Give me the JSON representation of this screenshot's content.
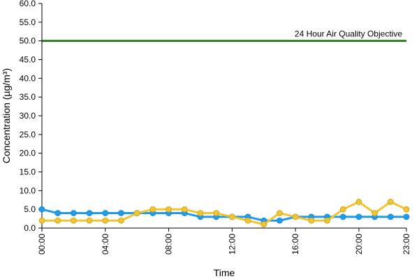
{
  "chart_data": {
    "type": "line",
    "title": "",
    "xlabel": "Time",
    "ylabel": "Concentration (µg/m³)",
    "ylim": [
      0,
      60
    ],
    "yticks": [
      "0.0",
      "5.0",
      "10.0",
      "15.0",
      "20.0",
      "25.0",
      "30.0",
      "35.0",
      "40.0",
      "45.0",
      "50.0",
      "55.0",
      "60.0"
    ],
    "x": [
      "00:00",
      "01:00",
      "02:00",
      "03:00",
      "04:00",
      "05:00",
      "06:00",
      "07:00",
      "08:00",
      "09:00",
      "10:00",
      "11:00",
      "12:00",
      "13:00",
      "14:00",
      "15:00",
      "16:00",
      "17:00",
      "18:00",
      "19:00",
      "20:00",
      "21:00",
      "22:00",
      "23:00"
    ],
    "xtick_labels": [
      "00:00",
      "04:00",
      "08:00",
      "12:00",
      "16:00",
      "20:00",
      "23:00"
    ],
    "grid": false,
    "legend": "none",
    "series": [
      {
        "color": "#1E9BE9",
        "values": [
          5,
          4,
          4,
          4,
          4,
          4,
          4,
          4,
          4,
          4,
          3,
          3,
          3,
          3,
          2,
          2,
          3,
          3,
          3,
          3,
          3,
          3,
          3,
          3
        ]
      },
      {
        "color": "#F2C530",
        "values": [
          2,
          2,
          2,
          2,
          2,
          2,
          4,
          5,
          5,
          5,
          4,
          4,
          3,
          2,
          1,
          4,
          3,
          2,
          2,
          5,
          7,
          4,
          7,
          5
        ]
      }
    ],
    "reference_line": {
      "value": 50,
      "label": "24 Hour Air Quality Objective",
      "color": "#2E7D1F"
    }
  }
}
